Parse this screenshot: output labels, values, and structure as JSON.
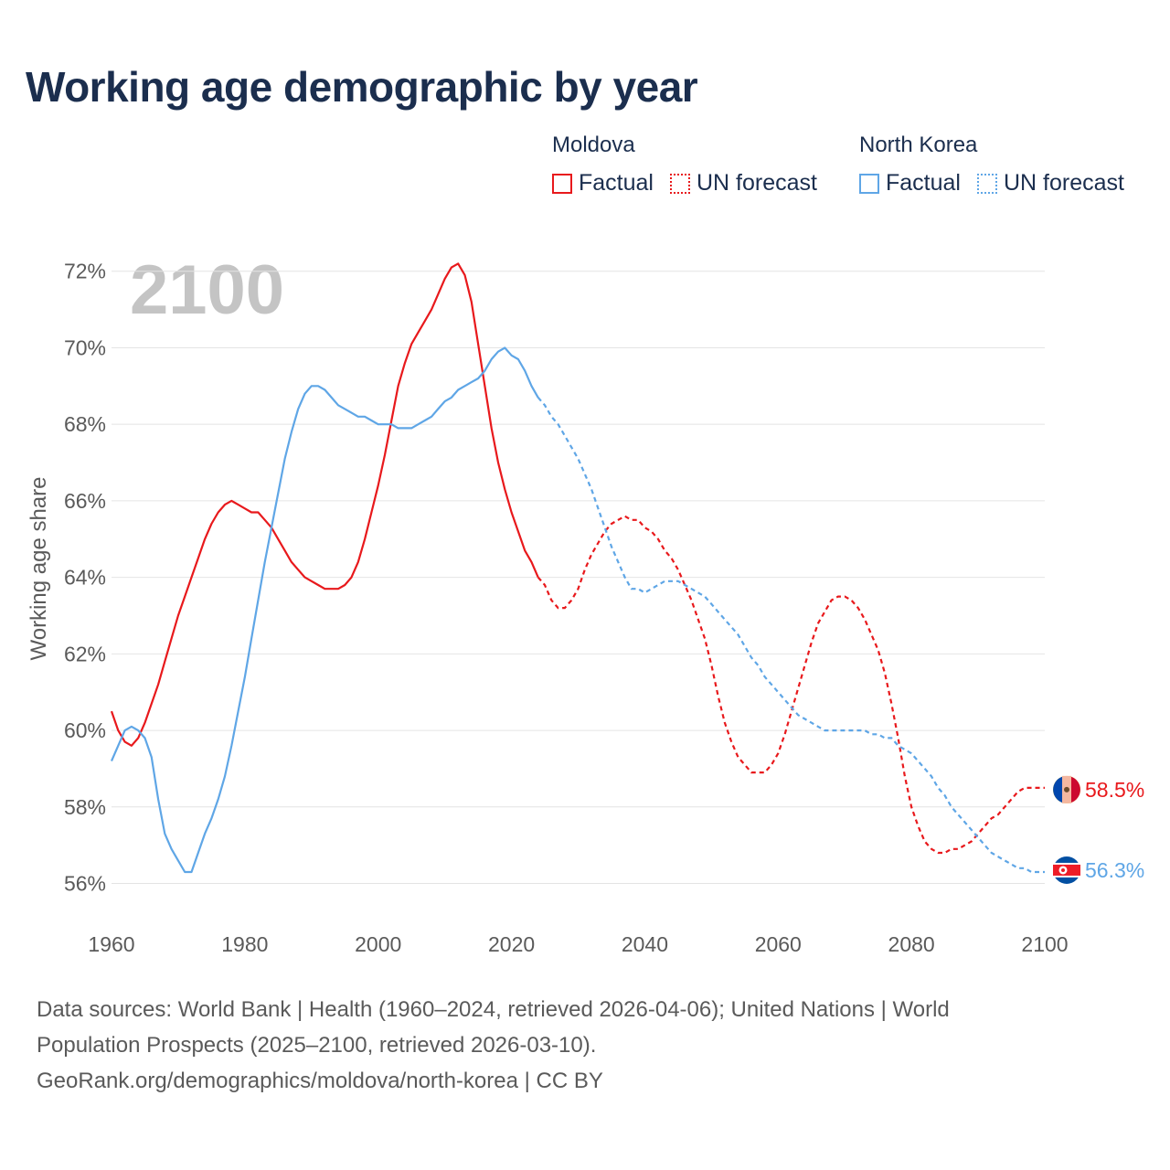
{
  "title": "Working age demographic by year",
  "legend": {
    "groups": [
      {
        "country": "Moldova",
        "color": "#e8191c",
        "factual_label": "Factual",
        "forecast_label": "UN forecast"
      },
      {
        "country": "North Korea",
        "color": "#5fa6e6",
        "factual_label": "Factual",
        "forecast_label": "UN forecast"
      }
    ]
  },
  "year_watermark": "2100",
  "footer": {
    "line1": "Data sources: World Bank | Health (1960–2024, retrieved 2026-04-06); United Nations | World",
    "line2": "Population Prospects (2025–2100, retrieved 2026-03-10).",
    "line3": "GeoRank.org/demographics/moldova/north-korea | CC BY"
  },
  "chart_data": {
    "type": "line",
    "title": "Working age demographic by year",
    "xlabel": "",
    "ylabel": "Working age share",
    "xlim": [
      1960,
      2100
    ],
    "ylim": [
      55.2,
      72.4
    ],
    "x_ticks": [
      1960,
      1980,
      2000,
      2020,
      2040,
      2060,
      2080,
      2100
    ],
    "y_ticks": [
      56,
      58,
      60,
      62,
      64,
      66,
      68,
      70,
      72
    ],
    "y_tick_format": "{v}%",
    "grid": true,
    "factual_end": 2024,
    "series": [
      {
        "name": "Moldova",
        "color": "#e8191c",
        "end_label": "58.5%",
        "flag": "moldova-flag",
        "x": [
          1960,
          1961,
          1962,
          1963,
          1964,
          1965,
          1966,
          1967,
          1968,
          1969,
          1970,
          1971,
          1972,
          1973,
          1974,
          1975,
          1976,
          1977,
          1978,
          1979,
          1980,
          1981,
          1982,
          1983,
          1984,
          1985,
          1986,
          1987,
          1988,
          1989,
          1990,
          1991,
          1992,
          1993,
          1994,
          1995,
          1996,
          1997,
          1998,
          1999,
          2000,
          2001,
          2002,
          2003,
          2004,
          2005,
          2006,
          2007,
          2008,
          2009,
          2010,
          2011,
          2012,
          2013,
          2014,
          2015,
          2016,
          2017,
          2018,
          2019,
          2020,
          2021,
          2022,
          2023,
          2024,
          2025,
          2026,
          2027,
          2028,
          2029,
          2030,
          2031,
          2032,
          2033,
          2034,
          2035,
          2036,
          2037,
          2038,
          2039,
          2040,
          2041,
          2042,
          2043,
          2044,
          2045,
          2046,
          2047,
          2048,
          2049,
          2050,
          2051,
          2052,
          2053,
          2054,
          2055,
          2056,
          2057,
          2058,
          2059,
          2060,
          2061,
          2062,
          2063,
          2064,
          2065,
          2066,
          2067,
          2068,
          2069,
          2070,
          2071,
          2072,
          2073,
          2074,
          2075,
          2076,
          2077,
          2078,
          2079,
          2080,
          2081,
          2082,
          2083,
          2084,
          2085,
          2086,
          2087,
          2088,
          2089,
          2090,
          2091,
          2092,
          2093,
          2094,
          2095,
          2096,
          2097,
          2098,
          2099,
          2100
        ],
        "values": [
          60.5,
          60.0,
          59.7,
          59.6,
          59.8,
          60.2,
          60.7,
          61.2,
          61.8,
          62.4,
          63.0,
          63.5,
          64.0,
          64.5,
          65.0,
          65.4,
          65.7,
          65.9,
          66.0,
          65.9,
          65.8,
          65.7,
          65.7,
          65.5,
          65.3,
          65.0,
          64.7,
          64.4,
          64.2,
          64.0,
          63.9,
          63.8,
          63.7,
          63.7,
          63.7,
          63.8,
          64.0,
          64.4,
          65.0,
          65.7,
          66.4,
          67.2,
          68.1,
          69.0,
          69.6,
          70.1,
          70.4,
          70.7,
          71.0,
          71.4,
          71.8,
          72.1,
          72.2,
          71.9,
          71.2,
          70.1,
          69.0,
          67.9,
          67.0,
          66.3,
          65.7,
          65.2,
          64.7,
          64.4,
          64.0,
          63.8,
          63.4,
          63.2,
          63.2,
          63.4,
          63.7,
          64.2,
          64.6,
          64.9,
          65.2,
          65.4,
          65.5,
          65.6,
          65.5,
          65.5,
          65.3,
          65.2,
          65.0,
          64.7,
          64.5,
          64.2,
          63.8,
          63.4,
          62.9,
          62.4,
          61.7,
          60.9,
          60.2,
          59.7,
          59.3,
          59.1,
          58.9,
          58.9,
          58.9,
          59.1,
          59.4,
          59.9,
          60.5,
          61.1,
          61.7,
          62.3,
          62.8,
          63.1,
          63.4,
          63.5,
          63.5,
          63.4,
          63.2,
          62.9,
          62.5,
          62.1,
          61.5,
          60.7,
          59.8,
          58.8,
          58.0,
          57.5,
          57.1,
          56.9,
          56.8,
          56.8,
          56.9,
          56.9,
          57.0,
          57.1,
          57.3,
          57.5,
          57.7,
          57.8,
          58.0,
          58.2,
          58.4,
          58.5,
          58.5,
          58.5,
          58.5
        ]
      },
      {
        "name": "North Korea",
        "color": "#5fa6e6",
        "end_label": "56.3%",
        "flag": "north-korea-flag",
        "x": [
          1960,
          1961,
          1962,
          1963,
          1964,
          1965,
          1966,
          1967,
          1968,
          1969,
          1970,
          1971,
          1972,
          1973,
          1974,
          1975,
          1976,
          1977,
          1978,
          1979,
          1980,
          1981,
          1982,
          1983,
          1984,
          1985,
          1986,
          1987,
          1988,
          1989,
          1990,
          1991,
          1992,
          1993,
          1994,
          1995,
          1996,
          1997,
          1998,
          1999,
          2000,
          2001,
          2002,
          2003,
          2004,
          2005,
          2006,
          2007,
          2008,
          2009,
          2010,
          2011,
          2012,
          2013,
          2014,
          2015,
          2016,
          2017,
          2018,
          2019,
          2020,
          2021,
          2022,
          2023,
          2024,
          2025,
          2026,
          2027,
          2028,
          2029,
          2030,
          2031,
          2032,
          2033,
          2034,
          2035,
          2036,
          2037,
          2038,
          2039,
          2040,
          2041,
          2042,
          2043,
          2044,
          2045,
          2046,
          2047,
          2048,
          2049,
          2050,
          2051,
          2052,
          2053,
          2054,
          2055,
          2056,
          2057,
          2058,
          2059,
          2060,
          2061,
          2062,
          2063,
          2064,
          2065,
          2066,
          2067,
          2068,
          2069,
          2070,
          2071,
          2072,
          2073,
          2074,
          2075,
          2076,
          2077,
          2078,
          2079,
          2080,
          2081,
          2082,
          2083,
          2084,
          2085,
          2086,
          2087,
          2088,
          2089,
          2090,
          2091,
          2092,
          2093,
          2094,
          2095,
          2096,
          2097,
          2098,
          2099,
          2100
        ],
        "values": [
          59.2,
          59.6,
          60.0,
          60.1,
          60.0,
          59.8,
          59.3,
          58.2,
          57.3,
          56.9,
          56.6,
          56.3,
          56.3,
          56.8,
          57.3,
          57.7,
          58.2,
          58.8,
          59.6,
          60.5,
          61.4,
          62.4,
          63.4,
          64.4,
          65.3,
          66.2,
          67.1,
          67.8,
          68.4,
          68.8,
          69.0,
          69.0,
          68.9,
          68.7,
          68.5,
          68.4,
          68.3,
          68.2,
          68.2,
          68.1,
          68.0,
          68.0,
          68.0,
          67.9,
          67.9,
          67.9,
          68.0,
          68.1,
          68.2,
          68.4,
          68.6,
          68.7,
          68.9,
          69.0,
          69.1,
          69.2,
          69.4,
          69.7,
          69.9,
          70.0,
          69.8,
          69.7,
          69.4,
          69.0,
          68.7,
          68.5,
          68.2,
          68.0,
          67.7,
          67.4,
          67.1,
          66.7,
          66.3,
          65.8,
          65.3,
          64.8,
          64.4,
          64.0,
          63.7,
          63.7,
          63.6,
          63.7,
          63.8,
          63.9,
          63.9,
          63.9,
          63.8,
          63.7,
          63.6,
          63.5,
          63.3,
          63.1,
          62.9,
          62.7,
          62.5,
          62.2,
          61.9,
          61.7,
          61.4,
          61.2,
          61.0,
          60.8,
          60.6,
          60.4,
          60.3,
          60.2,
          60.1,
          60.0,
          60.0,
          60.0,
          60.0,
          60.0,
          60.0,
          60.0,
          59.9,
          59.9,
          59.8,
          59.8,
          59.6,
          59.5,
          59.4,
          59.2,
          59.0,
          58.8,
          58.5,
          58.3,
          58.0,
          57.8,
          57.6,
          57.4,
          57.2,
          57.0,
          56.8,
          56.7,
          56.6,
          56.5,
          56.4,
          56.4,
          56.3,
          56.3,
          56.3
        ]
      }
    ]
  }
}
